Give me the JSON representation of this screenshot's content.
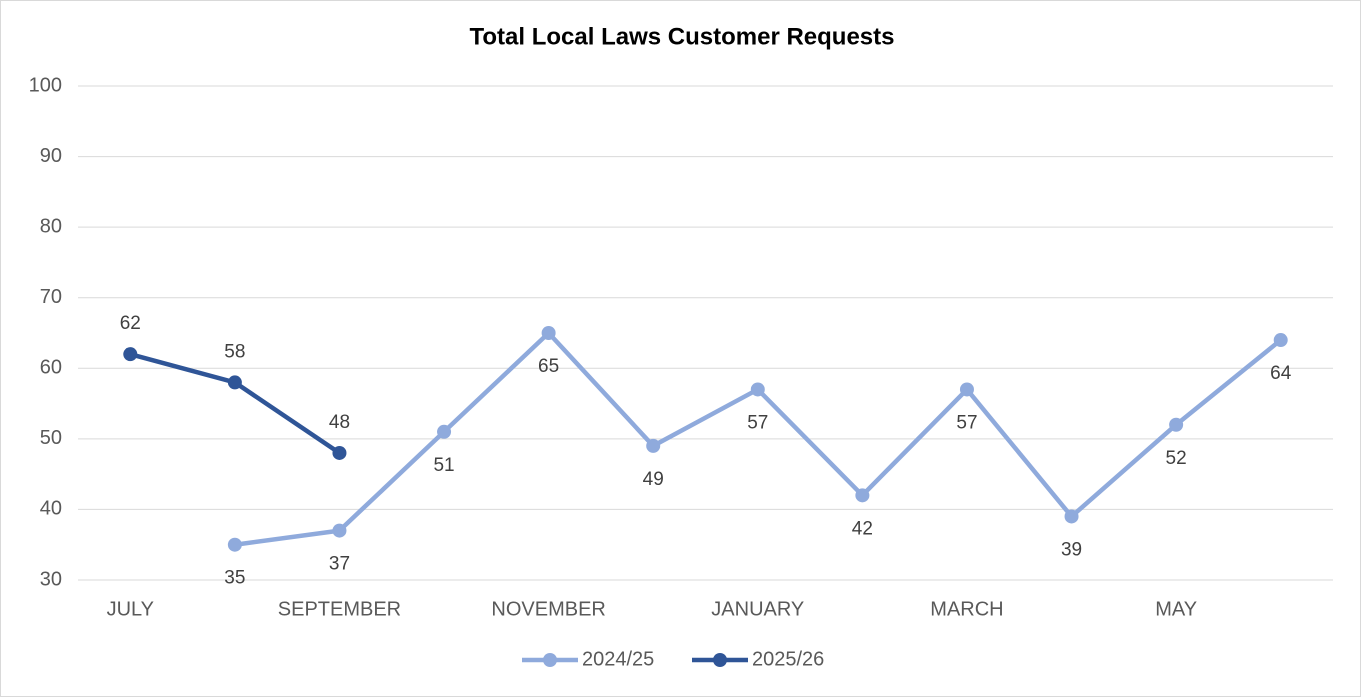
{
  "chart_data": {
    "type": "line",
    "title": "Total Local Laws Customer Requests",
    "categories": [
      "JULY",
      null,
      "SEPTEMBER",
      null,
      "NOVEMBER",
      null,
      "JANUARY",
      null,
      "MARCH",
      null,
      "MAY",
      null
    ],
    "series": [
      {
        "name": "2024/25",
        "color": "#8faadc",
        "values": [
          null,
          35,
          37,
          51,
          65,
          49,
          57,
          42,
          57,
          39,
          52,
          64
        ]
      },
      {
        "name": "2025/26",
        "color": "#2f5597",
        "values": [
          62,
          58,
          48,
          null,
          null,
          null,
          null,
          null,
          null,
          null,
          null,
          null
        ]
      }
    ],
    "ylim": [
      30,
      100
    ],
    "yticks": [
      30,
      40,
      50,
      60,
      70,
      80,
      90,
      100
    ],
    "grid": true,
    "legend": "bottom"
  }
}
